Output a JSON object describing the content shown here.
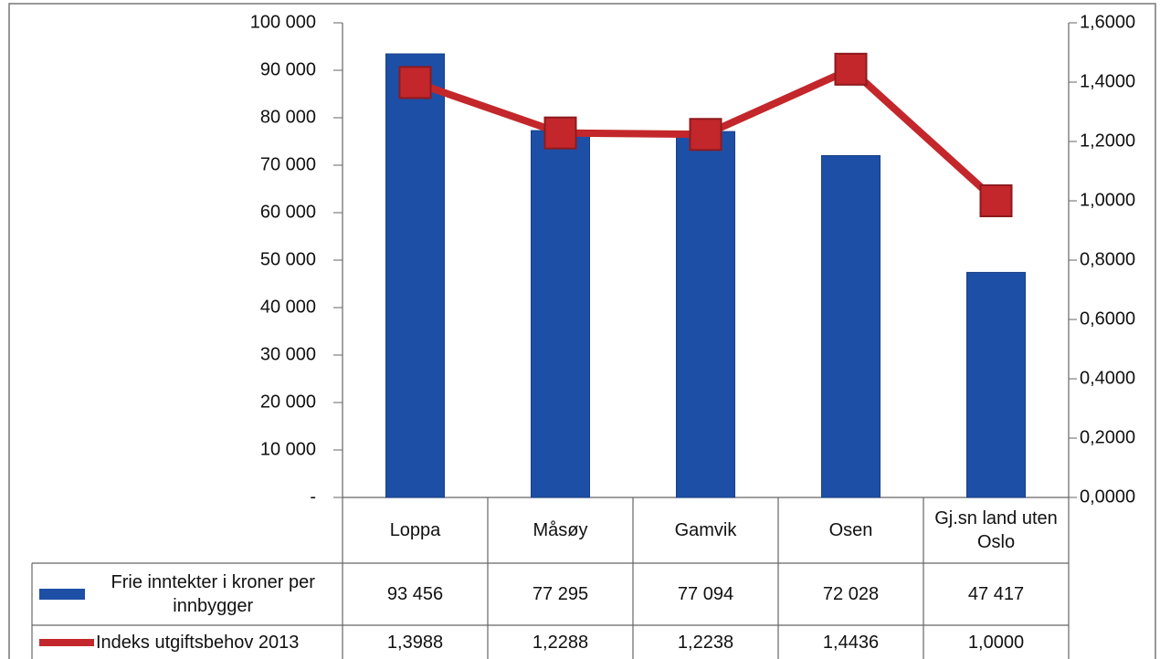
{
  "chart_data": {
    "type": "bar-line",
    "categories": [
      "Loppa",
      "Måsøy",
      "Gamvik",
      "Osen",
      "Gj.sn land uten Oslo"
    ],
    "series": [
      {
        "name": "Frie inntekter i kroner per innbygger",
        "type": "bar",
        "color": "#1e4fa6",
        "values": [
          93456,
          77295,
          77094,
          72028,
          47417
        ],
        "value_labels": [
          "93 456",
          "77 295",
          "77 094",
          "72 028",
          "47 417"
        ]
      },
      {
        "name": "Indeks utgiftsbehov 2013",
        "type": "line",
        "axis": "y2",
        "color": "#c3272b",
        "values": [
          1.3988,
          1.2288,
          1.2238,
          1.4436,
          1.0
        ],
        "value_labels": [
          "1,3988",
          "1,2288",
          "1,2238",
          "1,4436",
          "1,0000"
        ]
      }
    ],
    "ylim": [
      0,
      100000
    ],
    "yticks": [
      {
        "value": 0,
        "label": "-"
      },
      {
        "value": 10000,
        "label": "10 000"
      },
      {
        "value": 20000,
        "label": "20 000"
      },
      {
        "value": 30000,
        "label": "30 000"
      },
      {
        "value": 40000,
        "label": "40 000"
      },
      {
        "value": 50000,
        "label": "50 000"
      },
      {
        "value": 60000,
        "label": "60 000"
      },
      {
        "value": 70000,
        "label": "70 000"
      },
      {
        "value": 80000,
        "label": "80 000"
      },
      {
        "value": 90000,
        "label": "90 000"
      },
      {
        "value": 100000,
        "label": "100 000"
      }
    ],
    "y2lim": [
      0,
      1.6
    ],
    "y2ticks": [
      {
        "value": 0,
        "label": "0,0000"
      },
      {
        "value": 0.2,
        "label": "0,2000"
      },
      {
        "value": 0.4,
        "label": "0,4000"
      },
      {
        "value": 0.6,
        "label": "0,6000"
      },
      {
        "value": 0.8,
        "label": "0,8000"
      },
      {
        "value": 1.0,
        "label": "1,0000"
      },
      {
        "value": 1.2,
        "label": "1,2000"
      },
      {
        "value": 1.4,
        "label": "1,4000"
      },
      {
        "value": 1.6,
        "label": "1,6000"
      }
    ],
    "grid": false
  }
}
